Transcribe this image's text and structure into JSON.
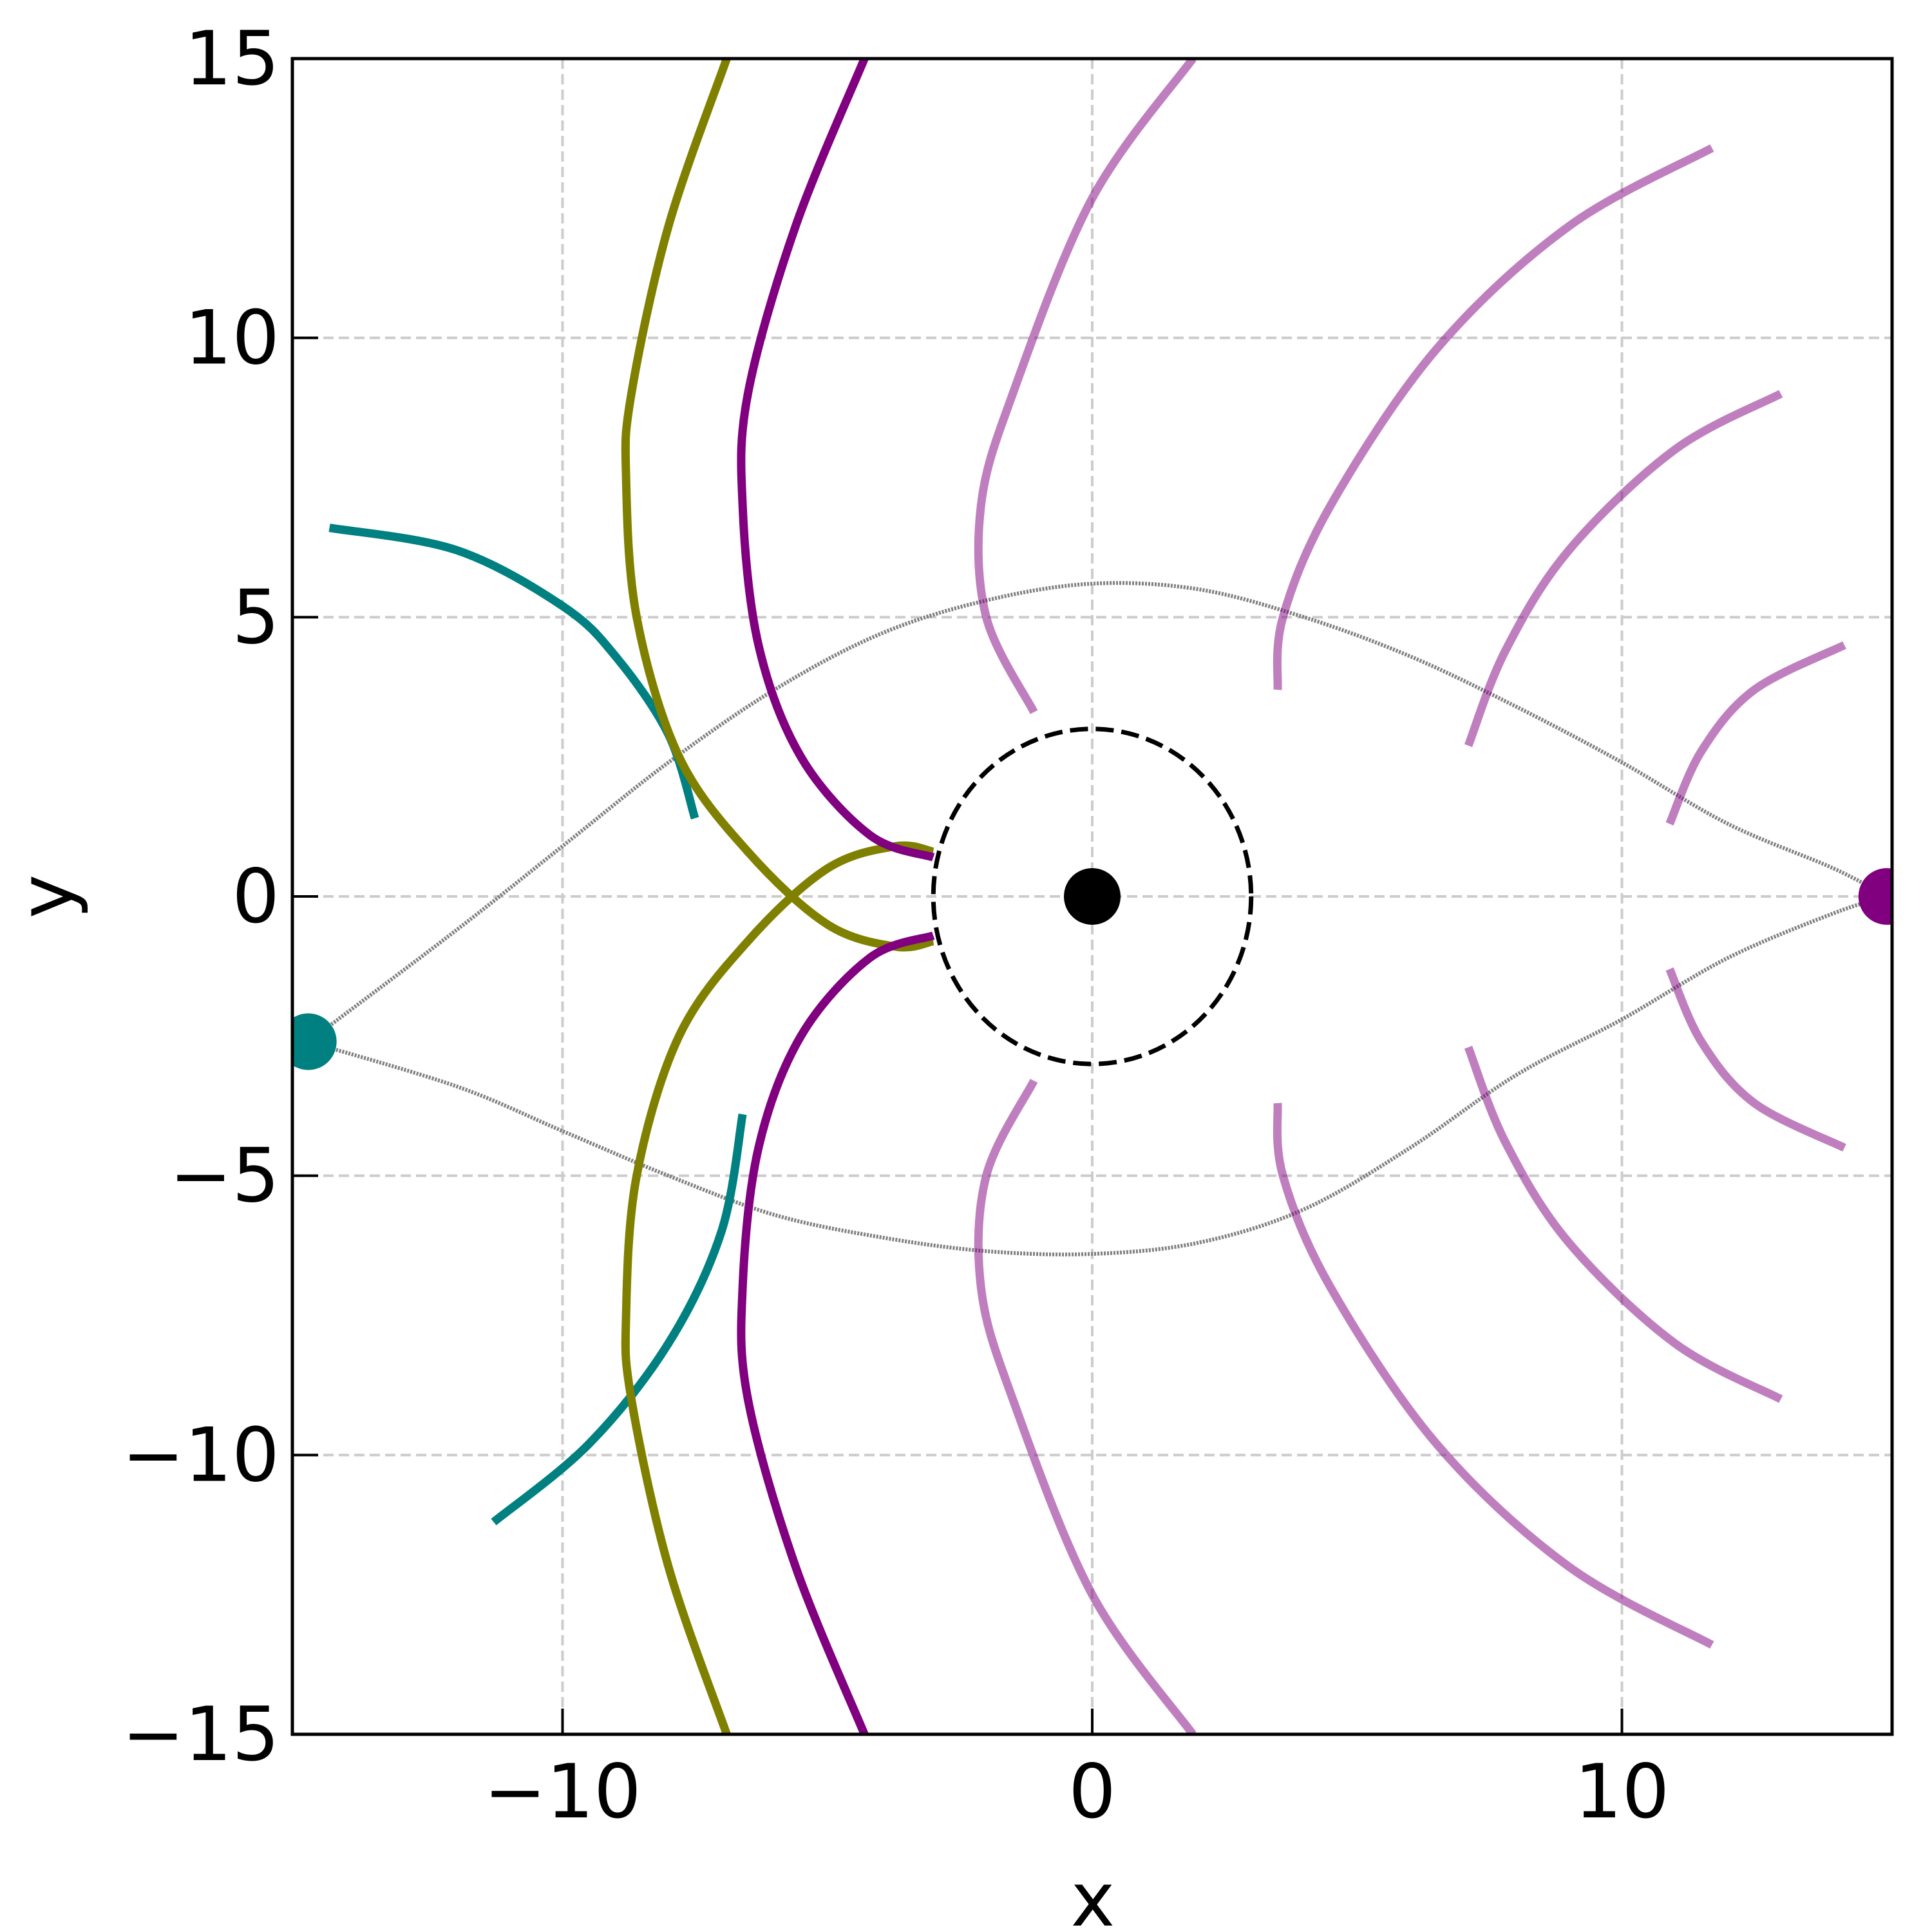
{
  "chart_data": {
    "type": "line",
    "xlabel": "x",
    "ylabel": "y",
    "xlim": [
      -15.1,
      15.1
    ],
    "ylim": [
      -15,
      15
    ],
    "xticks": [
      {
        "value": -10,
        "label": "−10"
      },
      0,
      10
    ],
    "yticks": [
      {
        "value": -15,
        "label": "−15"
      },
      {
        "value": -10,
        "label": "−10"
      },
      {
        "value": -5,
        "label": "−5"
      },
      0,
      5,
      10,
      15
    ],
    "grid": true,
    "series": [
      {
        "color": "#808080",
        "x": [
          -14.8,
          -12,
          -10,
          -8,
          -6,
          -4,
          -2,
          0,
          2,
          4,
          6,
          8,
          10,
          12,
          14,
          15
        ],
        "values": [
          -2.6,
          -0.6,
          0.9,
          2.4,
          3.7,
          4.7,
          5.3,
          5.6,
          5.5,
          5.0,
          4.3,
          3.4,
          2.4,
          1.3,
          0.5,
          0
        ]
      },
      {
        "color": "#808080",
        "x": [
          -14.8,
          -12,
          -10,
          -8,
          -6,
          -4,
          -2,
          0,
          2,
          4,
          6,
          8,
          10,
          12,
          14,
          15
        ],
        "values": [
          -2.6,
          -3.4,
          -4.2,
          -5.0,
          -5.7,
          -6.1,
          -6.35,
          -6.4,
          -6.2,
          -5.6,
          -4.5,
          -3.2,
          -2.2,
          -1.1,
          -0.3,
          0
        ]
      },
      {
        "color": "#008080",
        "x": [
          -14.4,
          -12,
          -10,
          -9,
          -8,
          -7.5
        ],
        "values": [
          6.6,
          6.2,
          5.2,
          4.3,
          2.9,
          1.4
        ]
      },
      {
        "color": "#008080",
        "x": [
          -11.3,
          -9.5,
          -8,
          -7,
          -6.6
        ],
        "values": [
          -11.2,
          -9.8,
          -8.0,
          -6.0,
          -3.9
        ]
      },
      {
        "color": "#808000",
        "x": [
          -6.9,
          -8.0,
          -8.7,
          -8.8,
          -8.6,
          -7.8,
          -6.5,
          -5.0,
          -3.7,
          -3.0
        ],
        "values": [
          15,
          12,
          9,
          7.5,
          5,
          2.5,
          0.8,
          -0.5,
          -0.9,
          -0.8
        ]
      },
      {
        "color": "#808000",
        "x": [
          -6.9,
          -8.0,
          -8.7,
          -8.8,
          -8.6,
          -7.8,
          -6.5,
          -5.0,
          -3.7,
          -3.0
        ],
        "values": [
          -15,
          -12,
          -9,
          -7.5,
          -5,
          -2.5,
          -0.8,
          0.5,
          0.9,
          0.8
        ]
      },
      {
        "color": "#800080",
        "x": [
          -4.3,
          -5.6,
          -6.5,
          -6.6,
          -6.3,
          -5.5,
          -4.2,
          -3.0
        ],
        "values": [
          15,
          12,
          9,
          7,
          4.5,
          2.5,
          1.1,
          0.7
        ]
      },
      {
        "color": "#800080",
        "x": [
          -4.3,
          -5.6,
          -6.5,
          -6.6,
          -6.3,
          -5.5,
          -4.2,
          -3.0
        ],
        "values": [
          -15,
          -12,
          -9,
          -7,
          -4.5,
          -2.5,
          -1.1,
          -0.7
        ]
      },
      {
        "color": "#800080",
        "alpha": 0.5,
        "x": [
          1.9,
          0,
          -1.5,
          -2.1,
          -2,
          -1.1
        ],
        "values": [
          15,
          12.5,
          9,
          7,
          5,
          3.3
        ]
      },
      {
        "color": "#800080",
        "alpha": 0.5,
        "x": [
          1.9,
          0,
          -1.5,
          -2.1,
          -2,
          -1.1
        ],
        "values": [
          -15,
          -12.5,
          -9,
          -7,
          -5,
          -3.3
        ]
      },
      {
        "color": "#800080",
        "alpha": 0.5,
        "x": [
          11.7,
          9,
          6.5,
          4.5,
          3.6,
          3.5
        ],
        "values": [
          13.4,
          12,
          9.8,
          7,
          5,
          3.7
        ]
      },
      {
        "color": "#800080",
        "alpha": 0.5,
        "x": [
          11.7,
          9,
          6.5,
          4.5,
          3.6,
          3.5
        ],
        "values": [
          -13.4,
          -12,
          -9.8,
          -7,
          -5,
          -3.7
        ]
      },
      {
        "color": "#800080",
        "alpha": 0.5,
        "x": [
          13,
          11,
          9,
          7.8,
          7.1
        ],
        "values": [
          9,
          8,
          6.2,
          4.4,
          2.7
        ]
      },
      {
        "color": "#800080",
        "alpha": 0.5,
        "x": [
          13,
          11,
          9,
          7.8,
          7.1
        ],
        "values": [
          -9,
          -8,
          -6.2,
          -4.4,
          -2.7
        ]
      },
      {
        "color": "#800080",
        "alpha": 0.5,
        "x": [
          14.2,
          12.5,
          11.5,
          10.9
        ],
        "values": [
          4.5,
          3.7,
          2.6,
          1.3
        ]
      },
      {
        "color": "#800080",
        "alpha": 0.5,
        "x": [
          14.2,
          12.5,
          11.5,
          10.9
        ],
        "values": [
          -4.5,
          -3.7,
          -2.6,
          -1.3
        ]
      }
    ],
    "circles": [
      {
        "x": 0,
        "y": 0,
        "r": 3,
        "color": "#000000",
        "dashed": true
      }
    ],
    "points": [
      {
        "x": 0,
        "y": 0,
        "color": "#000000"
      },
      {
        "x": -14.8,
        "y": -2.6,
        "color": "#008080"
      },
      {
        "x": 15,
        "y": 0,
        "color": "#800080"
      }
    ]
  }
}
